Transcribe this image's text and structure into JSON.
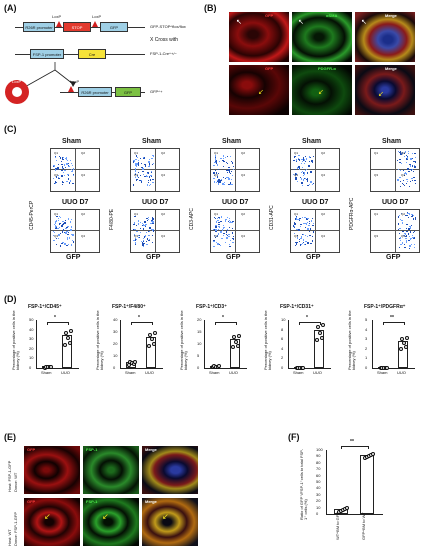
{
  "panels": [
    "(A)",
    "(B)",
    "(C)",
    "(D)",
    "(E)",
    "(F)"
  ],
  "A": {
    "row1": {
      "promoter": "R26R promoter",
      "loxp1": "LoxP",
      "loxp2": "LoxP",
      "stop": "STOP",
      "gfp": "GFP",
      "label": "GFP-STOP^flox/flox"
    },
    "cross": "X  Cross with",
    "row2": {
      "promoter": "FSP-1 promoter",
      "cre": "Cre",
      "label": "FSP-1-Cre^+/−"
    },
    "row3": {
      "loxp": "LoxP",
      "promoter": "R26R promoter",
      "gfp": "GFP",
      "label": "GFP^+"
    },
    "cell_loxp": "LoxP"
  },
  "B": {
    "row1": [
      "GFP",
      "αSMA",
      "Merge"
    ],
    "row2": [
      "GFP",
      "PDGFR-α",
      "Merge"
    ]
  },
  "C": {
    "sham": "Sham",
    "uuo": "UUO D7",
    "xaxis": "GFP",
    "ylabels": [
      "CD45-PerCP",
      "F4/80-PE",
      "CD3-APC",
      "CD31-APC",
      "PDGFRα-APC"
    ],
    "quadrants": [
      "Q1",
      "Q2",
      "Q3",
      "Q4"
    ]
  },
  "D": {
    "titles": [
      "FSP-1⁺/CD45⁺",
      "FSP-1⁺/F4/80⁺",
      "FSP-1⁺/CD3⁺",
      "FSP-1⁺/CD31⁺",
      "FSP-1⁺/PDGFRα⁺"
    ],
    "ylabel": "Percentage of positive cells in the kidney (%)",
    "categories": [
      "Sham",
      "UUO"
    ],
    "sig": [
      "*",
      "*",
      "*",
      "*",
      "**"
    ]
  },
  "E": {
    "host1": "Host: FSP-1-GFP",
    "donor1": "Donor: WT",
    "host2": "Host:  WT",
    "donor2": "Donor: FSP-1-GFP",
    "row1": [
      "GFP",
      "FSP-1",
      "Merge"
    ],
    "row2": [
      "GFP",
      "FSP-1",
      "Merge"
    ]
  },
  "F": {
    "ylabel": "Ratio of GFP⁺/FSP-1⁺cells to total FSP-1⁺ cells (%)",
    "sig": "**",
    "categories": [
      "WT^BM to GFP",
      "GFP^BM to WT"
    ],
    "yticks": [
      "0",
      "10",
      "20",
      "30",
      "40",
      "50",
      "60",
      "70",
      "80",
      "90",
      "100"
    ]
  },
  "chart_data": [
    {
      "type": "bar",
      "title": "FSP-1⁺/CD45⁺",
      "ylabel": "Percentage of positive cells in the kidney (%)",
      "categories": [
        "Sham",
        "UUO"
      ],
      "values": [
        2,
        34
      ],
      "ylim": [
        0,
        50
      ],
      "yticks": [
        "0",
        "10",
        "20",
        "30",
        "40",
        "50"
      ]
    },
    {
      "type": "bar",
      "title": "FSP-1⁺/F4/80⁺",
      "ylabel": "Percentage of positive cells in the kidney (%)",
      "categories": [
        "Sham",
        "UUO"
      ],
      "values": [
        5,
        26
      ],
      "ylim": [
        0,
        40
      ],
      "yticks": [
        "0",
        "10",
        "20",
        "30",
        "40"
      ]
    },
    {
      "type": "bar",
      "title": "FSP-1⁺/CD3⁺",
      "ylabel": "Percentage of positive cells in the kidney (%)",
      "categories": [
        "Sham",
        "UUO"
      ],
      "values": [
        1,
        12
      ],
      "ylim": [
        0,
        20
      ],
      "yticks": [
        "0",
        "5",
        "10",
        "15",
        "20"
      ]
    },
    {
      "type": "bar",
      "title": "FSP-1⁺/CD31⁺",
      "ylabel": "Percentage of positive cells in the kidney (%)",
      "categories": [
        "Sham",
        "UUO"
      ],
      "values": [
        0.2,
        8
      ],
      "ylim": [
        0,
        10
      ],
      "yticks": [
        "0",
        "2",
        "4",
        "6",
        "8",
        "10"
      ]
    },
    {
      "type": "bar",
      "title": "FSP-1⁺/PDGFRα⁺",
      "ylabel": "Percentage of positive cells in the kidney (%)",
      "categories": [
        "Sham",
        "UUO"
      ],
      "values": [
        0.1,
        2.8
      ],
      "ylim": [
        0,
        5
      ],
      "yticks": [
        "0",
        "1",
        "2",
        "3",
        "4",
        "5"
      ]
    },
    {
      "type": "bar",
      "ylabel": "Ratio of GFP⁺/FSP-1⁺cells to total FSP-1⁺ cells (%)",
      "categories": [
        "WT^BM to GFP",
        "GFP^BM to WT"
      ],
      "values": [
        8,
        92
      ],
      "ylim": [
        0,
        100
      ]
    }
  ]
}
